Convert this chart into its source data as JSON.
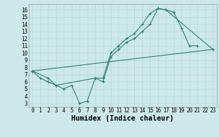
{
  "title": "",
  "xlabel": "Humidex (Indice chaleur)",
  "bg_color": "#cce8e8",
  "line_color": "#2e7d6e",
  "xlim": [
    -0.5,
    23.5
  ],
  "ylim": [
    2.5,
    16.8
  ],
  "yticks": [
    3,
    4,
    5,
    6,
    7,
    8,
    9,
    10,
    11,
    12,
    13,
    14,
    15,
    16
  ],
  "xticks": [
    0,
    1,
    2,
    3,
    4,
    5,
    6,
    7,
    8,
    9,
    10,
    11,
    12,
    13,
    14,
    15,
    16,
    17,
    18,
    19,
    20,
    21,
    22,
    23
  ],
  "line1_x": [
    0,
    1,
    2,
    3,
    8,
    9,
    10,
    11,
    12,
    13,
    14,
    15,
    16,
    17,
    18,
    19,
    20,
    21
  ],
  "line1_y": [
    7.5,
    6.5,
    6.0,
    5.5,
    6.5,
    6.5,
    10.0,
    11.0,
    12.0,
    12.7,
    14.0,
    15.5,
    16.2,
    16.0,
    15.7,
    13.5,
    11.0,
    11.0
  ],
  "line2_x": [
    0,
    2,
    3,
    4,
    5,
    6,
    7,
    8,
    9,
    10,
    11,
    12,
    13,
    14,
    15,
    16,
    17,
    23
  ],
  "line2_y": [
    7.5,
    6.5,
    5.5,
    5.0,
    5.5,
    3.0,
    3.3,
    6.5,
    6.0,
    9.5,
    10.5,
    11.5,
    12.0,
    13.0,
    14.0,
    16.2,
    16.0,
    10.5
  ],
  "line3_x": [
    0,
    23
  ],
  "line3_y": [
    7.5,
    10.5
  ],
  "grid_color": "#aed4d4",
  "tick_fontsize": 5.5,
  "label_fontsize": 7.5,
  "marker_size": 2.5,
  "lw": 0.8
}
